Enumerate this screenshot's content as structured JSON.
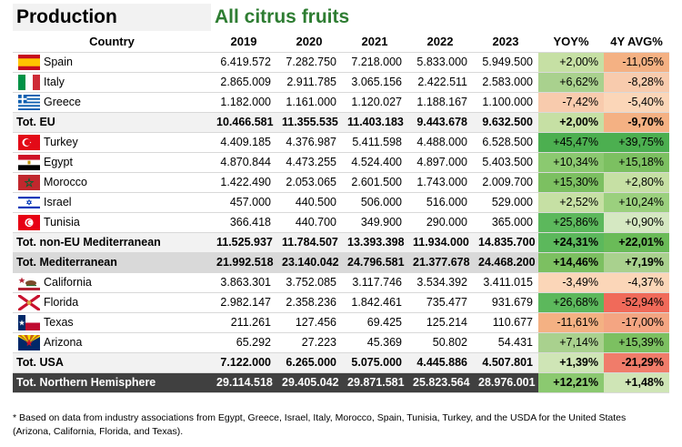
{
  "title": "Production",
  "subtitle": "All citrus fruits",
  "headers": [
    "Country",
    "2019",
    "2020",
    "2021",
    "2022",
    "2023",
    "YOY%",
    "4Y AVG%"
  ],
  "rows": [
    {
      "type": "country",
      "flag": "spain",
      "name": "Spain",
      "values": [
        "6.419.572",
        "7.282.750",
        "7.218.000",
        "5.833.000",
        "5.949.500"
      ],
      "yoy": "+2,00%",
      "yoy_color": "#c6e0a4",
      "avg": "-11,05%",
      "avg_color": "#f4b183"
    },
    {
      "type": "country",
      "flag": "italy",
      "name": "Italy",
      "values": [
        "2.865.009",
        "2.911.785",
        "3.065.156",
        "2.422.511",
        "2.583.000"
      ],
      "yoy": "+6,62%",
      "yoy_color": "#a9d18e",
      "avg": "-8,28%",
      "avg_color": "#f8cbad"
    },
    {
      "type": "country",
      "flag": "greece",
      "name": "Greece",
      "values": [
        "1.182.000",
        "1.161.000",
        "1.120.027",
        "1.188.167",
        "1.100.000"
      ],
      "yoy": "-7,42%",
      "yoy_color": "#f8cbad",
      "avg": "-5,40%",
      "avg_color": "#fbd6b8"
    },
    {
      "type": "subtotal",
      "name": "Tot. EU",
      "values": [
        "10.466.581",
        "11.355.535",
        "11.403.183",
        "9.443.678",
        "9.632.500"
      ],
      "yoy": "+2,00%",
      "yoy_color": "#c6e0a4",
      "avg": "-9,70%",
      "avg_color": "#f4b183"
    },
    {
      "type": "country",
      "flag": "turkey",
      "name": "Turkey",
      "values": [
        "4.409.185",
        "4.376.987",
        "5.411.598",
        "4.488.000",
        "6.528.500"
      ],
      "yoy": "+45,47%",
      "yoy_color": "#4caf50",
      "avg": "+39,75%",
      "avg_color": "#4caf50"
    },
    {
      "type": "country",
      "flag": "egypt",
      "name": "Egypt",
      "values": [
        "4.870.844",
        "4.473.255",
        "4.524.400",
        "4.897.000",
        "5.403.500"
      ],
      "yoy": "+10,34%",
      "yoy_color": "#8bc970",
      "avg": "+15,18%",
      "avg_color": "#7cc061"
    },
    {
      "type": "country",
      "flag": "morocco",
      "name": "Morocco",
      "values": [
        "1.422.490",
        "2.053.065",
        "2.601.500",
        "1.743.000",
        "2.009.700"
      ],
      "yoy": "+15,30%",
      "yoy_color": "#7cc061",
      "avg": "+2,80%",
      "avg_color": "#c6e0a4"
    },
    {
      "type": "country",
      "flag": "israel",
      "name": "Israel",
      "values": [
        "457.000",
        "440.500",
        "506.000",
        "516.000",
        "529.000"
      ],
      "yoy": "+2,52%",
      "yoy_color": "#c6e0a4",
      "avg": "+10,24%",
      "avg_color": "#9bd07e"
    },
    {
      "type": "country",
      "flag": "tunisia",
      "name": "Tunisia",
      "values": [
        "366.418",
        "440.700",
        "349.900",
        "290.000",
        "365.000"
      ],
      "yoy": "+25,86%",
      "yoy_color": "#5cb85c",
      "avg": "+0,90%",
      "avg_color": "#d5e8c2"
    },
    {
      "type": "subtotal",
      "name": "Tot. non-EU Mediterranean",
      "values": [
        "11.525.937",
        "11.784.507",
        "13.393.398",
        "11.934.000",
        "14.835.700"
      ],
      "yoy": "+24,31%",
      "yoy_color": "#5cb85c",
      "avg": "+22,01%",
      "avg_color": "#6abb58"
    },
    {
      "type": "med",
      "name": "Tot. Mediterranean",
      "values": [
        "21.992.518",
        "23.140.042",
        "24.796.581",
        "21.377.678",
        "24.468.200"
      ],
      "yoy": "+14,46%",
      "yoy_color": "#7cc061",
      "avg": "+7,19%",
      "avg_color": "#a9d18e"
    },
    {
      "type": "country",
      "flag": "california",
      "name": "California",
      "values": [
        "3.863.301",
        "3.752.085",
        "3.117.746",
        "3.534.392",
        "3.411.015"
      ],
      "yoy": "-3,49%",
      "yoy_color": "#fbd6b8",
      "avg": "-4,37%",
      "avg_color": "#fbd6b8"
    },
    {
      "type": "country",
      "flag": "florida",
      "name": "Florida",
      "values": [
        "2.982.147",
        "2.358.236",
        "1.842.461",
        "735.477",
        "931.679"
      ],
      "yoy": "+26,68%",
      "yoy_color": "#5cb85c",
      "avg": "-52,94%",
      "avg_color": "#f06a5a"
    },
    {
      "type": "country",
      "flag": "texas",
      "name": "Texas",
      "values": [
        "211.261",
        "127.456",
        "69.425",
        "125.214",
        "110.677"
      ],
      "yoy": "-11,61%",
      "yoy_color": "#f4b183",
      "avg": "-17,00%",
      "avg_color": "#f4a582"
    },
    {
      "type": "country",
      "flag": "arizona",
      "name": "Arizona",
      "values": [
        "65.292",
        "27.223",
        "45.369",
        "50.802",
        "54.431"
      ],
      "yoy": "+7,14%",
      "yoy_color": "#a9d18e",
      "avg": "+15,39%",
      "avg_color": "#7cc061"
    },
    {
      "type": "subtotal",
      "name": "Tot. USA",
      "values": [
        "7.122.000",
        "6.265.000",
        "5.075.000",
        "4.445.886",
        "4.507.801"
      ],
      "yoy": "+1,39%",
      "yoy_color": "#cfe5b6",
      "avg": "-21,29%",
      "avg_color": "#f07c6a"
    },
    {
      "type": "total",
      "name": "Tot. Northern Hemisphere",
      "values": [
        "29.114.518",
        "29.405.042",
        "29.871.581",
        "25.823.564",
        "28.976.001"
      ],
      "yoy": "+12,21%",
      "yoy_color": "#8bc970",
      "avg": "+1,48%",
      "avg_color": "#cfe5b6"
    }
  ],
  "footnote_line1": "* Based on data from industry associations from Egypt, Greece, Israel, Italy, Morocco, Spain, Tunisia, Turkey, and the USDA for the United States",
  "footnote_line2": "(Arizona, California, Florida, and Texas)."
}
